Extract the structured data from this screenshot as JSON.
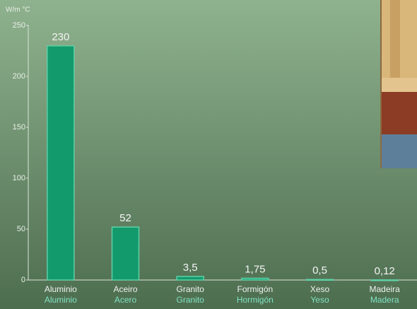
{
  "chart_data": {
    "type": "bar",
    "y_label": "W/m °C",
    "categories": [
      "Aluminio",
      "Aceiro",
      "Granito",
      "Formigón",
      "Xeso",
      "Madeira"
    ],
    "categories_es": [
      "Aluminio",
      "Acero",
      "Granito",
      "Hormigón",
      "Yeso",
      "Madera"
    ],
    "values": [
      230,
      52,
      3.5,
      1.75,
      0.5,
      0.12
    ],
    "value_labels": [
      "230",
      "52",
      "3,5",
      "1,75",
      "0,5",
      "0,12"
    ],
    "color": "#139a6c",
    "ylim": [
      0,
      250
    ],
    "yticks": [
      0,
      50,
      100,
      150,
      200,
      250
    ]
  }
}
